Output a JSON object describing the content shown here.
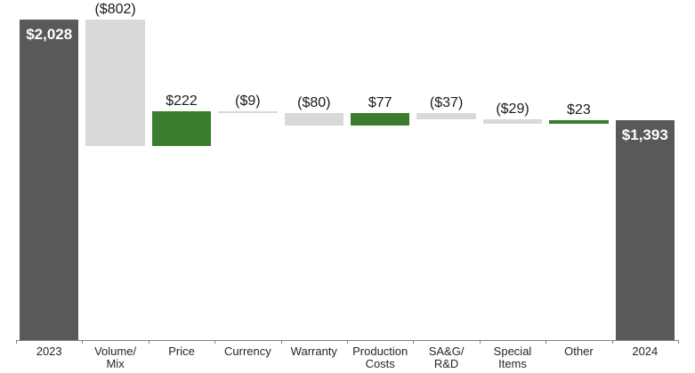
{
  "chart_data": {
    "type": "bar",
    "subtype": "waterfall",
    "title": "",
    "legend": false,
    "grid": false,
    "ylim": [
      0,
      2100
    ],
    "categories": [
      "2023",
      "Volume/\nMix",
      "Price",
      "Currency",
      "Warranty",
      "Production\nCosts",
      "SA&G/\nR&D",
      "Special\nItems",
      "Other",
      "2024"
    ],
    "bars": [
      {
        "category": "2023",
        "tick_label": "2023",
        "label": "$2,028",
        "value": 2028,
        "kind": "total"
      },
      {
        "category": "Volume/Mix",
        "tick_label": "Volume/\nMix",
        "label": "($802)",
        "value": -802,
        "kind": "delta"
      },
      {
        "category": "Price",
        "tick_label": "Price",
        "label": "$222",
        "value": 222,
        "kind": "delta"
      },
      {
        "category": "Currency",
        "tick_label": "Currency",
        "label": "($9)",
        "value": -9,
        "kind": "delta"
      },
      {
        "category": "Warranty",
        "tick_label": "Warranty",
        "label": "($80)",
        "value": -80,
        "kind": "delta"
      },
      {
        "category": "Production Costs",
        "tick_label": "Production\nCosts",
        "label": "$77",
        "value": 77,
        "kind": "delta"
      },
      {
        "category": "SA&G/R&D",
        "tick_label": "SA&G/\nR&D",
        "label": "($37)",
        "value": -37,
        "kind": "delta"
      },
      {
        "category": "Special Items",
        "tick_label": "Special\nItems",
        "label": "($29)",
        "value": -29,
        "kind": "delta"
      },
      {
        "category": "Other",
        "tick_label": "Other",
        "label": "$23",
        "value": 23,
        "kind": "delta"
      },
      {
        "category": "2024",
        "tick_label": "2024",
        "label": "$1,393",
        "value": 1393,
        "kind": "total"
      }
    ]
  },
  "colors": {
    "total_bar": "#595959",
    "increase_bar": "#3a7d2c",
    "decrease_bar": "#d9d9d9",
    "axis": "#808080",
    "value_label": "#1a1a1a",
    "total_value_label": "#ffffff",
    "background": "#ffffff"
  }
}
